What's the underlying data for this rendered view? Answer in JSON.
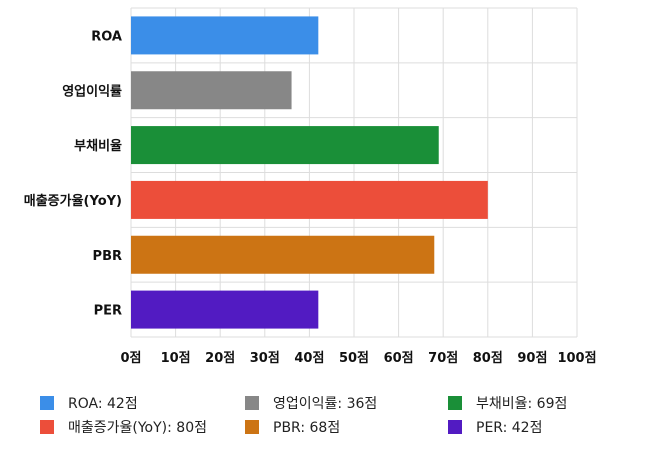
{
  "chart_data": {
    "type": "bar",
    "orientation": "horizontal",
    "categories": [
      "ROA",
      "영업이익률",
      "부채비율",
      "매출증가율(YoY)",
      "PBR",
      "PER"
    ],
    "values": [
      42,
      36,
      69,
      80,
      68,
      42
    ],
    "colors": [
      "#3b8ee8",
      "#878787",
      "#1a8f38",
      "#ec4e3a",
      "#cc7414",
      "#521bc2"
    ],
    "xlim": [
      0,
      100
    ],
    "x_ticks": [
      "0점",
      "10점",
      "20점",
      "30점",
      "40점",
      "50점",
      "60점",
      "70점",
      "80점",
      "90점",
      "100점"
    ],
    "grid": true,
    "legend": {
      "position": "bottom",
      "items": [
        {
          "label": "ROA: 42점",
          "color": "#3b8ee8"
        },
        {
          "label": "영업이익률: 36점",
          "color": "#878787"
        },
        {
          "label": "부채비율: 69점",
          "color": "#1a8f38"
        },
        {
          "label": "매출증가율(YoY): 80점",
          "color": "#ec4e3a"
        },
        {
          "label": "PBR: 68점",
          "color": "#cc7414"
        },
        {
          "label": "PER: 42점",
          "color": "#521bc2"
        }
      ]
    }
  }
}
